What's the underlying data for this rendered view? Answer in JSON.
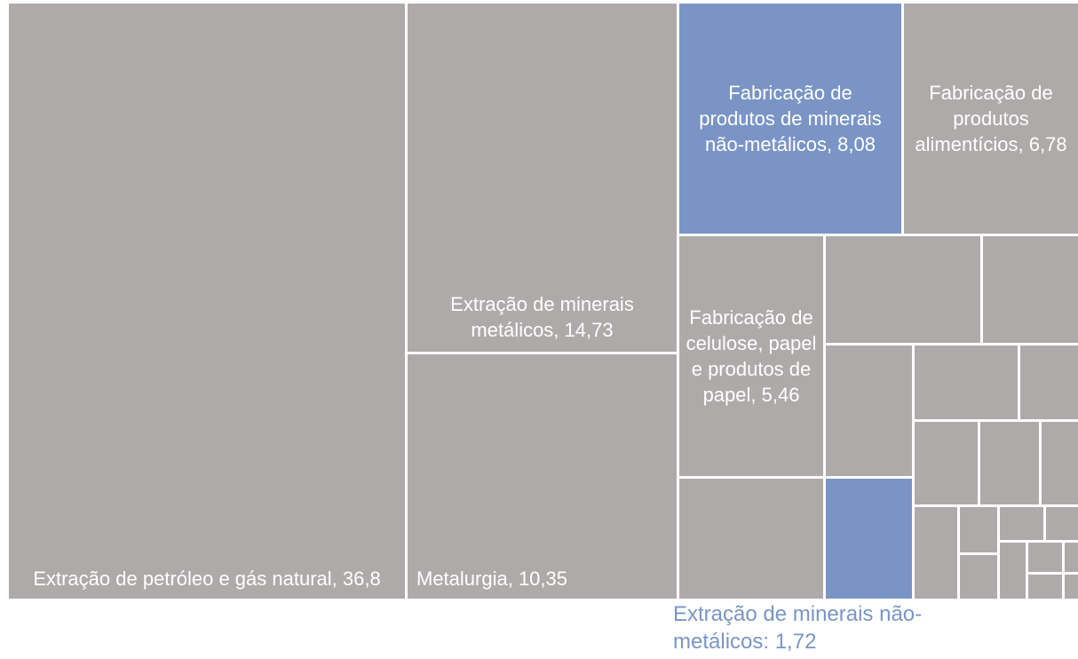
{
  "chart_data": {
    "type": "treemap",
    "categories": [
      "Extração de petróleo e gás natural, 36,8",
      "Extração de minerais metálicos, 14,73",
      "Metalurgia, 10,35",
      "Fabricação de produtos de minerais não-metálicos, 8,08",
      "Fabricação de produtos alimentícios, 6,78",
      "Fabricação de celulose, papel e produtos de papel, 5,46",
      null,
      null,
      null,
      null,
      null,
      null,
      null,
      null,
      null,
      null,
      null,
      null,
      null,
      null,
      null,
      null,
      null,
      null,
      null,
      null
    ],
    "values": [
      36.8,
      14.73,
      10.35,
      8.08,
      6.78,
      5.46,
      2.69,
      2.57,
      1.58,
      1.76,
      1.72,
      1.19,
      0.66,
      0.81,
      0.76,
      0.47,
      0.61,
      0.26,
      0.25,
      0.22,
      0.16,
      0.22,
      0.15,
      0.06,
      0.13,
      0.05
    ],
    "colors": [
      "#aeaaaa",
      "#aeaaaa",
      "#aeaaaa",
      "#7a95c5",
      "#aeaaaa",
      "#aeaaaa",
      "#aeaaaa",
      "#aeaaaa",
      "#aeaaaa",
      "#aeaaaa",
      "#7a95c5",
      "#aeaaaa",
      "#aeaaaa",
      "#aeaaaa",
      "#aeaaaa",
      "#aeaaaa",
      "#aeaaaa",
      "#aeaaaa",
      "#aeaaaa",
      "#aeaaaa",
      "#aeaaaa",
      "#aeaaaa",
      "#aeaaaa",
      "#aeaaaa",
      "#aeaaaa",
      "#aeaaaa"
    ],
    "annotation": "Extração de minerais não-metálicos: 1,72",
    "annotation_color": "#7a95c5"
  }
}
